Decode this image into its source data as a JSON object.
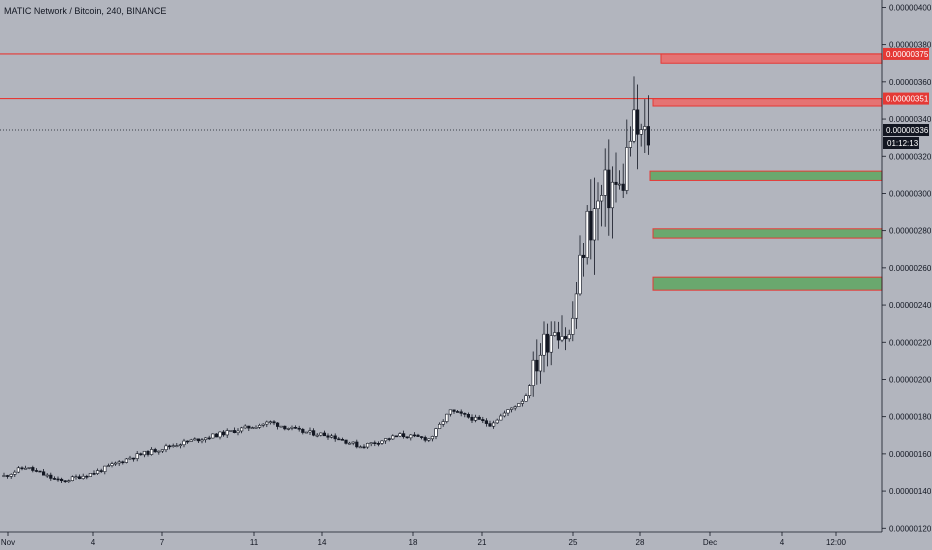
{
  "header": {
    "title": "MATIC Network / Bitcoin, 240, BINANCE"
  },
  "chart_data": {
    "type": "candlestick",
    "title": "MATIC Network / Bitcoin, 240, BINANCE",
    "ylim": [
      1.18e-06,
      4.04e-06
    ],
    "y_ticks": [
      "0.00000120",
      "0.00000140",
      "0.00000160",
      "0.00000180",
      "0.00000200",
      "0.00000220",
      "0.00000240",
      "0.00000260",
      "0.00000280",
      "0.00000300",
      "0.00000320",
      "0.00000340",
      "0.00000360",
      "0.00000380",
      "0.00000400"
    ],
    "x_ticks": [
      "Nov",
      "4",
      "7",
      "11",
      "14",
      "18",
      "21",
      "25",
      "28",
      "Dec",
      "4",
      "12:00"
    ],
    "last_price_label": "0.00000336",
    "countdown_label": "01:12:13",
    "resistance_levels": [
      {
        "label": "0.00000375",
        "value": 3.75e-06
      },
      {
        "label": "0.00000351",
        "value": 3.51e-06
      }
    ],
    "resistance_zones": [
      {
        "low": 3.7e-06,
        "high": 3.75e-06
      },
      {
        "low": 3.47e-06,
        "high": 3.51e-06
      }
    ],
    "support_zones": [
      {
        "low": 3.07e-06,
        "high": 3.12e-06
      },
      {
        "low": 2.76e-06,
        "high": 2.81e-06
      },
      {
        "low": 2.48e-06,
        "high": 2.55e-06
      }
    ],
    "colors": {
      "background": "#b2b5be",
      "resistance_line": "#e53935",
      "resistance_fill": "#e57373",
      "support_fill": "#6aa86e",
      "candle_up": "#ffffff",
      "candle_down": "#131722"
    }
  }
}
